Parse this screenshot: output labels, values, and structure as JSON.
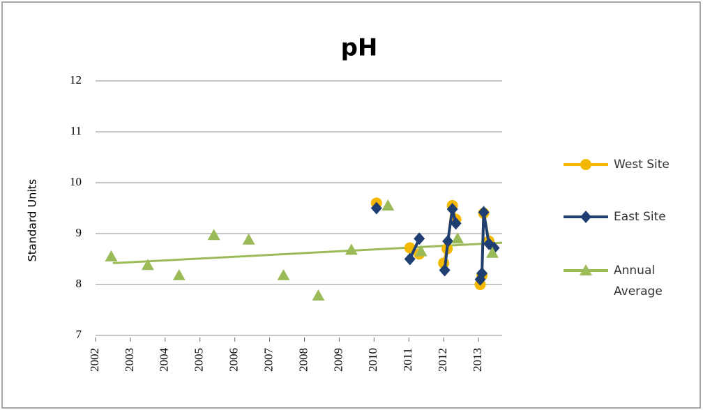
{
  "chart_data": {
    "type": "line",
    "title": "pH",
    "ylabel": "Standard Units",
    "xlim": [
      2002,
      2013.68
    ],
    "xticks": [
      2002,
      2003,
      2004,
      2005,
      2006,
      2007,
      2008,
      2009,
      2010,
      2011,
      2012,
      2013
    ],
    "ylim": [
      7,
      12
    ],
    "yticks": [
      7,
      8,
      9,
      10,
      11,
      12
    ],
    "grid": true,
    "legend": "right",
    "series": [
      {
        "name": "West Site",
        "color": "#f5b800",
        "marker": "circle",
        "x": [
          2010.07,
          null,
          2011.03,
          2011.3,
          null,
          2012.0,
          2012.1,
          2012.25,
          2012.35,
          null,
          2013.05,
          2013.1,
          2013.15,
          2013.3
        ],
        "values": [
          9.6,
          null,
          8.72,
          8.6,
          null,
          8.42,
          8.7,
          9.55,
          9.28,
          null,
          8.0,
          8.18,
          9.4,
          8.85
        ]
      },
      {
        "name": "East Site",
        "color": "#1f3f73",
        "marker": "diamond",
        "x": [
          2010.07,
          null,
          2011.03,
          2011.3,
          null,
          2012.03,
          2012.12,
          2012.25,
          2012.35,
          null,
          2013.05,
          2013.1,
          2013.15,
          2013.3,
          2013.45
        ],
        "values": [
          9.5,
          null,
          8.5,
          8.9,
          null,
          8.28,
          8.85,
          9.48,
          9.2,
          null,
          8.1,
          8.22,
          9.42,
          8.8,
          8.72
        ]
      },
      {
        "name": "Annual Average",
        "color": "#9bbb59",
        "marker": "triangle",
        "line": false,
        "x": [
          2002.45,
          2003.5,
          2004.4,
          2005.4,
          2006.4,
          2007.4,
          2008.4,
          2009.35,
          2010.4,
          2011.35,
          2012.4,
          2013.4
        ],
        "values": [
          8.55,
          8.38,
          8.18,
          8.97,
          8.88,
          8.18,
          7.78,
          8.68,
          9.55,
          8.65,
          8.9,
          8.62
        ]
      }
    ],
    "trendline": {
      "color": "#9bbb59",
      "x": [
        2002.5,
        2013.68
      ],
      "values": [
        8.42,
        8.82
      ]
    }
  }
}
